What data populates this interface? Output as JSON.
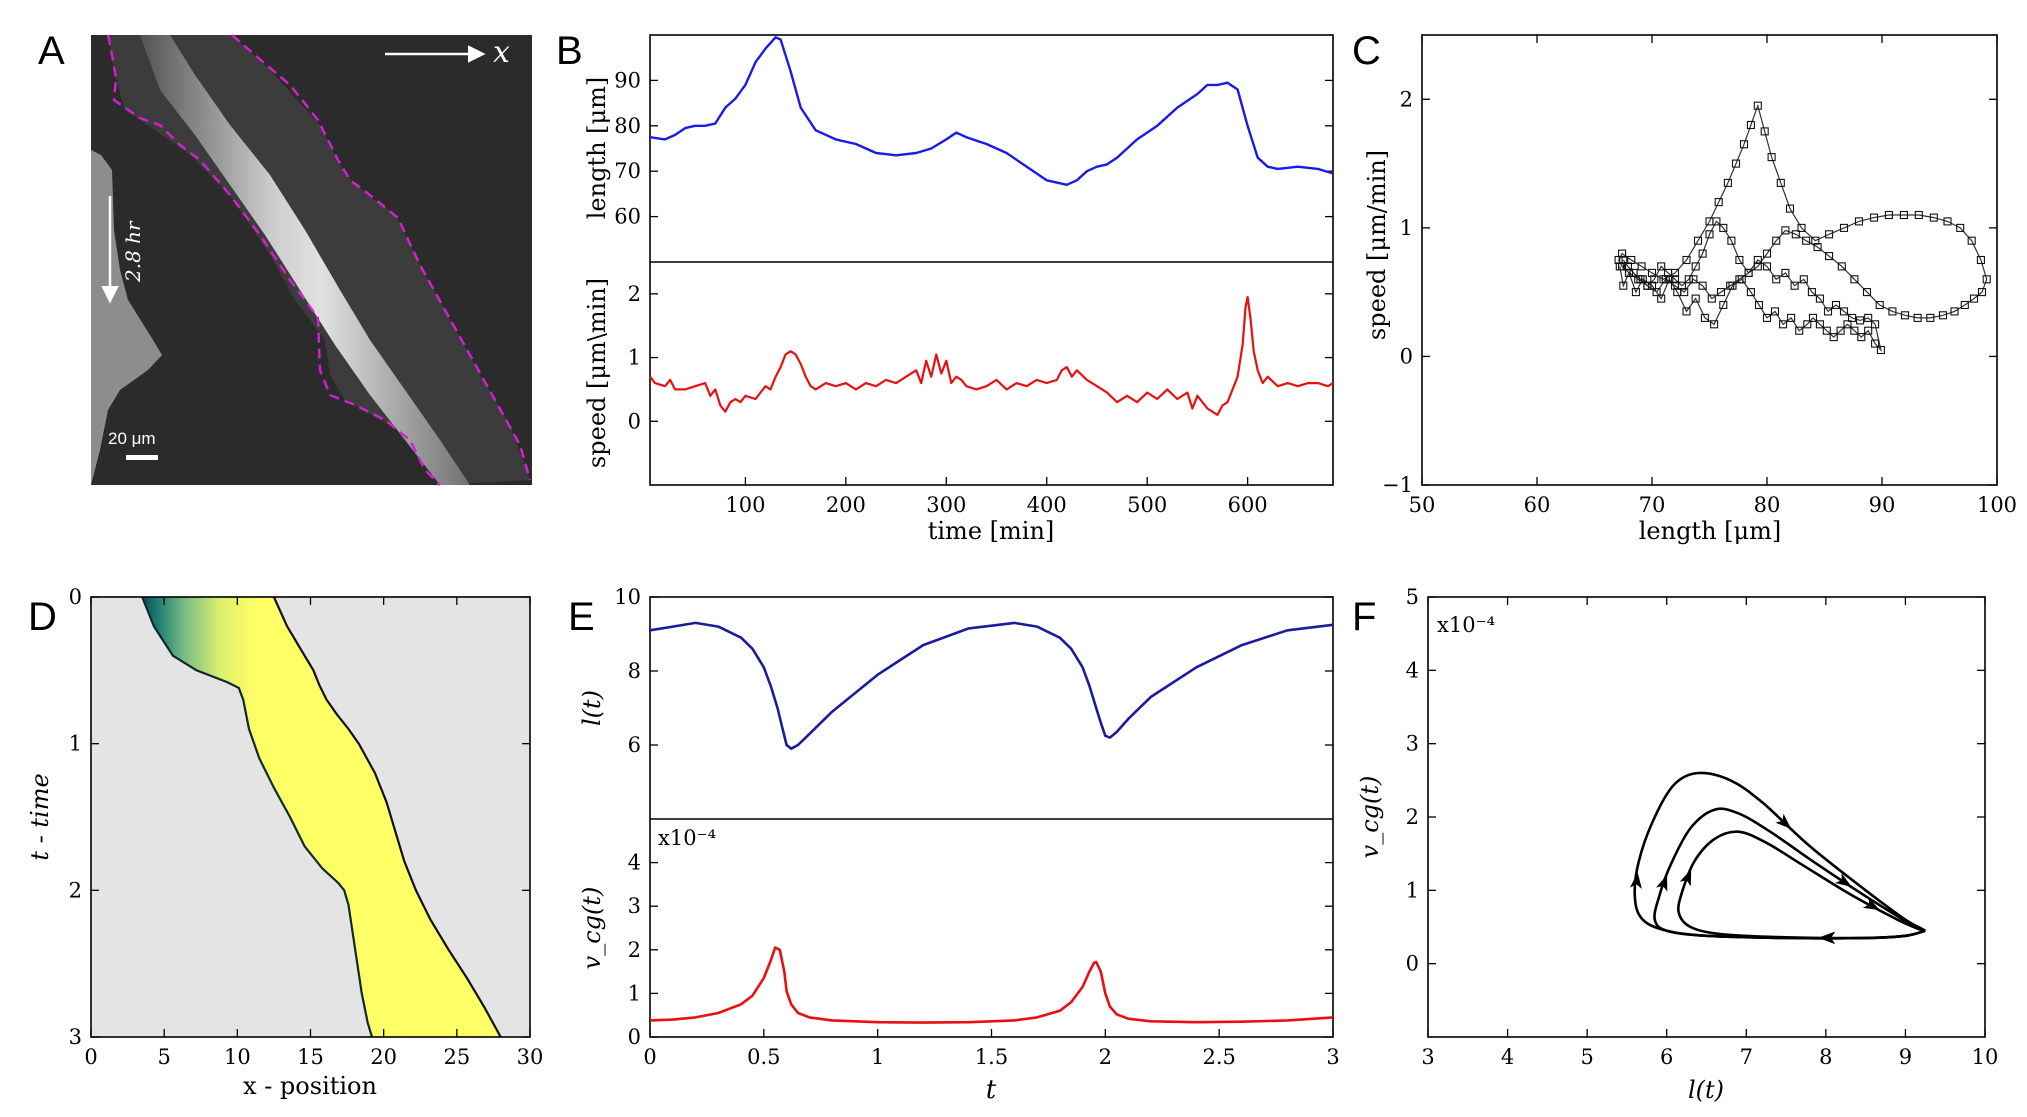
{
  "panel_labels": [
    "A",
    "B",
    "C",
    "D",
    "E",
    "F"
  ],
  "panelA": {
    "arrow_label": "x",
    "time_label": "2.8 hr",
    "scale_label": "20 μm"
  },
  "chart_data": [
    {
      "id": "B-top",
      "type": "line",
      "ylabel": "length [μm]",
      "xlim": [
        5,
        685
      ],
      "ylim": [
        50,
        100
      ],
      "yticks": [
        60,
        70,
        80,
        90
      ],
      "series": [
        {
          "name": "length",
          "color": "#1a1aee",
          "x": [
            5,
            20,
            30,
            40,
            50,
            60,
            70,
            80,
            90,
            100,
            110,
            120,
            130,
            135,
            145,
            155,
            170,
            190,
            210,
            230,
            250,
            270,
            285,
            300,
            310,
            320,
            340,
            360,
            380,
            400,
            410,
            420,
            430,
            440,
            450,
            460,
            470,
            490,
            510,
            530,
            550,
            560,
            570,
            580,
            590,
            600,
            610,
            620,
            630,
            650,
            670,
            685
          ],
          "y": [
            77.5,
            77,
            78,
            79.5,
            80,
            80,
            80.5,
            84,
            86,
            89,
            94,
            97,
            99.5,
            99,
            92,
            84,
            79,
            77,
            76,
            74,
            73.5,
            74,
            75,
            77,
            78.5,
            77.5,
            76,
            74,
            71,
            68,
            67.5,
            67,
            68,
            70,
            71,
            71.5,
            73,
            77,
            80,
            84,
            87,
            89,
            89,
            89.5,
            88,
            80,
            73,
            71,
            70.5,
            71,
            70.5,
            69.5
          ]
        }
      ]
    },
    {
      "id": "B-bottom",
      "type": "line",
      "xlabel": "time [min]",
      "ylabel": "speed [μm\\min]",
      "xlim": [
        5,
        685
      ],
      "ylim": [
        -1,
        2.5
      ],
      "xticks": [
        100,
        200,
        300,
        400,
        500,
        600
      ],
      "yticks": [
        0,
        1,
        2
      ],
      "series": [
        {
          "name": "speed",
          "color": "#e81010",
          "x": [
            5,
            10,
            20,
            25,
            30,
            40,
            50,
            60,
            65,
            70,
            75,
            80,
            85,
            90,
            95,
            100,
            110,
            120,
            125,
            130,
            135,
            140,
            145,
            150,
            155,
            160,
            165,
            170,
            180,
            190,
            200,
            210,
            220,
            230,
            240,
            250,
            260,
            270,
            275,
            280,
            285,
            290,
            295,
            300,
            305,
            310,
            315,
            320,
            330,
            340,
            350,
            360,
            370,
            380,
            390,
            400,
            410,
            415,
            420,
            425,
            430,
            440,
            450,
            460,
            470,
            480,
            490,
            500,
            510,
            520,
            530,
            540,
            545,
            550,
            560,
            570,
            575,
            580,
            585,
            590,
            595,
            598,
            600,
            603,
            606,
            610,
            615,
            620,
            630,
            640,
            650,
            660,
            670,
            680,
            685
          ],
          "y": [
            0.7,
            0.6,
            0.55,
            0.65,
            0.5,
            0.5,
            0.55,
            0.6,
            0.4,
            0.5,
            0.25,
            0.15,
            0.3,
            0.35,
            0.3,
            0.4,
            0.35,
            0.55,
            0.5,
            0.7,
            0.85,
            1.05,
            1.1,
            1.05,
            0.9,
            0.7,
            0.55,
            0.5,
            0.6,
            0.55,
            0.6,
            0.5,
            0.6,
            0.55,
            0.65,
            0.6,
            0.7,
            0.8,
            0.6,
            0.95,
            0.7,
            1.05,
            0.75,
            0.95,
            0.6,
            0.7,
            0.65,
            0.55,
            0.5,
            0.55,
            0.65,
            0.5,
            0.6,
            0.55,
            0.65,
            0.6,
            0.65,
            0.8,
            0.85,
            0.7,
            0.8,
            0.65,
            0.55,
            0.45,
            0.3,
            0.4,
            0.3,
            0.45,
            0.35,
            0.5,
            0.35,
            0.45,
            0.2,
            0.4,
            0.2,
            0.1,
            0.25,
            0.3,
            0.5,
            0.7,
            1.2,
            1.8,
            1.95,
            1.6,
            1.1,
            0.8,
            0.6,
            0.7,
            0.55,
            0.6,
            0.55,
            0.6,
            0.6,
            0.55,
            0.6
          ]
        }
      ]
    },
    {
      "id": "C",
      "type": "scatter",
      "xlabel": "length [μm]",
      "ylabel": "speed [μm/min]",
      "xlim": [
        50,
        100
      ],
      "ylim": [
        -1,
        2.5
      ],
      "xticks": [
        50,
        60,
        70,
        80,
        90,
        100
      ],
      "yticks": [
        -1,
        0,
        1,
        2
      ],
      "series": [
        {
          "name": "trajectory",
          "color": "#000000",
          "marker": "square",
          "x": [
            67.2,
            67.5,
            68,
            68.6,
            69.2,
            70,
            70.8,
            71.5,
            72.2,
            73,
            73.8,
            74.6,
            75.4,
            76.2,
            77,
            77.8,
            78.6,
            79.3,
            80,
            80.7,
            81.4,
            82.1,
            82.8,
            83.5,
            84,
            84.6,
            85.2,
            85.8,
            86.4,
            87,
            87.6,
            88.2,
            88.8,
            89.4,
            89.9,
            89.4,
            88.8,
            88.1,
            87.4,
            86.7,
            86,
            85.3,
            84.6,
            83.9,
            83.2,
            82.4,
            81.6,
            80.8,
            80,
            79.2,
            78.4,
            77.6,
            76.8,
            76,
            75.2,
            74.4,
            73.6,
            72.8,
            72,
            71.2,
            70.4,
            69.6,
            68.8,
            68,
            67.4,
            67.1,
            67.4,
            68.2,
            69.1,
            70,
            71,
            72,
            73,
            74,
            75,
            75.8,
            76.6,
            77.3,
            78,
            78.6,
            79.2,
            79.8,
            80.4,
            81.2,
            82,
            83,
            84.2,
            85.4,
            86.7,
            88,
            89.3,
            90.6,
            91.9,
            93.2,
            94.5,
            95.7,
            96.8,
            97.8,
            98.6,
            99.1,
            98.7,
            98,
            97.2,
            96.3,
            95.3,
            94.2,
            93.1,
            92,
            90.9,
            89.8,
            88.7,
            87.6,
            86.5,
            85.4,
            84.4,
            83.4,
            82.5,
            81.6,
            80.8,
            80,
            79.2,
            78.4,
            77.6,
            76.9,
            76.2,
            75.6,
            75,
            74.4,
            73.8,
            73.2,
            72.6,
            72,
            71.4,
            70.8,
            70.2,
            69.6,
            69,
            68.4,
            67.9,
            67.5
          ],
          "y": [
            0.7,
            0.55,
            0.65,
            0.5,
            0.6,
            0.55,
            0.45,
            0.6,
            0.5,
            0.35,
            0.45,
            0.3,
            0.25,
            0.4,
            0.55,
            0.6,
            0.5,
            0.4,
            0.3,
            0.35,
            0.25,
            0.3,
            0.2,
            0.25,
            0.3,
            0.25,
            0.2,
            0.15,
            0.2,
            0.25,
            0.2,
            0.15,
            0.2,
            0.1,
            0.05,
            0.25,
            0.3,
            0.28,
            0.3,
            0.35,
            0.4,
            0.35,
            0.45,
            0.5,
            0.6,
            0.55,
            0.65,
            0.6,
            0.7,
            0.75,
            0.65,
            0.6,
            0.55,
            0.5,
            0.45,
            0.55,
            0.6,
            0.5,
            0.55,
            0.6,
            0.5,
            0.55,
            0.6,
            0.65,
            0.7,
            0.75,
            0.8,
            0.75,
            0.7,
            0.65,
            0.6,
            0.65,
            0.75,
            0.9,
            1.05,
            1.2,
            1.35,
            1.5,
            1.65,
            1.8,
            1.95,
            1.75,
            1.55,
            1.35,
            1.15,
            1.0,
            0.9,
            0.95,
            1.0,
            1.05,
            1.08,
            1.1,
            1.1,
            1.1,
            1.08,
            1.05,
            1.0,
            0.9,
            0.75,
            0.6,
            0.5,
            0.45,
            0.4,
            0.35,
            0.32,
            0.3,
            0.3,
            0.32,
            0.35,
            0.4,
            0.5,
            0.6,
            0.7,
            0.78,
            0.85,
            0.9,
            0.95,
            0.98,
            0.9,
            0.8,
            0.7,
            0.65,
            0.75,
            0.9,
            1.0,
            1.05,
            0.95,
            0.8,
            0.7,
            0.6,
            0.55,
            0.6,
            0.65,
            0.7,
            0.6,
            0.55,
            0.6,
            0.65,
            0.7,
            0.75
          ]
        }
      ]
    },
    {
      "id": "D",
      "type": "heatmap",
      "xlabel": "x - position",
      "ylabel": "t - time",
      "xlim": [
        0,
        30
      ],
      "ylim": [
        3,
        0
      ],
      "xticks": [
        0,
        5,
        10,
        15,
        20,
        25,
        30
      ],
      "yticks": [
        0,
        1,
        2,
        3
      ],
      "left_edge": {
        "t": [
          0,
          0.2,
          0.4,
          0.5,
          0.58,
          0.62,
          0.7,
          0.9,
          1.1,
          1.3,
          1.5,
          1.7,
          1.85,
          1.95,
          2.0,
          2.1,
          2.3,
          2.5,
          2.7,
          2.9,
          3.0
        ],
        "x": [
          3.5,
          4.3,
          5.6,
          7.2,
          9.3,
          10.1,
          10.4,
          10.8,
          11.5,
          12.5,
          13.6,
          14.6,
          15.8,
          16.9,
          17.3,
          17.6,
          17.9,
          18.2,
          18.5,
          18.9,
          19.2
        ]
      },
      "right_edge": {
        "t": [
          0,
          0.2,
          0.4,
          0.5,
          0.6,
          0.7,
          0.8,
          0.9,
          1.0,
          1.2,
          1.4,
          1.6,
          1.8,
          2.0,
          2.2,
          2.4,
          2.6,
          2.8,
          3.0
        ],
        "x": [
          12.5,
          13.4,
          14.6,
          15.2,
          15.6,
          16.1,
          16.8,
          17.6,
          18.3,
          19.4,
          20.2,
          20.8,
          21.4,
          22.2,
          23.2,
          24.4,
          25.7,
          26.9,
          28.0
        ]
      }
    },
    {
      "id": "E-top",
      "type": "line",
      "ylabel": "l(t)",
      "xlim": [
        0,
        3
      ],
      "ylim": [
        4,
        10
      ],
      "yticks": [
        6,
        8,
        10
      ],
      "series": [
        {
          "name": "l(t)",
          "color": "#1b1b9e",
          "x": [
            0,
            0.1,
            0.2,
            0.3,
            0.4,
            0.45,
            0.5,
            0.53,
            0.56,
            0.58,
            0.6,
            0.62,
            0.65,
            0.7,
            0.8,
            1.0,
            1.2,
            1.4,
            1.6,
            1.7,
            1.8,
            1.85,
            1.9,
            1.93,
            1.96,
            1.98,
            2.0,
            2.02,
            2.05,
            2.1,
            2.2,
            2.4,
            2.6,
            2.8,
            3.0
          ],
          "y": [
            9.1,
            9.2,
            9.3,
            9.2,
            8.9,
            8.6,
            8.1,
            7.6,
            7.0,
            6.5,
            6.0,
            5.9,
            6.0,
            6.3,
            6.9,
            7.9,
            8.7,
            9.15,
            9.3,
            9.2,
            8.9,
            8.6,
            8.1,
            7.6,
            7.0,
            6.6,
            6.25,
            6.2,
            6.35,
            6.7,
            7.3,
            8.1,
            8.7,
            9.1,
            9.25
          ]
        }
      ]
    },
    {
      "id": "E-bottom",
      "type": "line",
      "xlabel": "t",
      "ylabel": "v_cg(t)",
      "multiplier": "x10⁻⁴",
      "xlim": [
        0,
        3
      ],
      "ylim": [
        0,
        5
      ],
      "xticks": [
        0,
        0.5,
        1,
        1.5,
        2,
        2.5,
        3
      ],
      "yticks": [
        0,
        1,
        2,
        3,
        4
      ],
      "series": [
        {
          "name": "v_cg(t)",
          "color": "#e81010",
          "x": [
            0,
            0.1,
            0.2,
            0.3,
            0.4,
            0.45,
            0.5,
            0.53,
            0.55,
            0.57,
            0.59,
            0.6,
            0.62,
            0.65,
            0.7,
            0.8,
            1.0,
            1.2,
            1.4,
            1.6,
            1.7,
            1.8,
            1.85,
            1.9,
            1.93,
            1.95,
            1.96,
            1.98,
            2.0,
            2.02,
            2.05,
            2.1,
            2.2,
            2.4,
            2.6,
            2.8,
            3.0
          ],
          "y": [
            0.38,
            0.4,
            0.45,
            0.55,
            0.75,
            0.95,
            1.35,
            1.75,
            2.05,
            2.0,
            1.5,
            1.05,
            0.75,
            0.55,
            0.45,
            0.38,
            0.34,
            0.33,
            0.34,
            0.38,
            0.45,
            0.6,
            0.8,
            1.15,
            1.5,
            1.7,
            1.72,
            1.5,
            1.0,
            0.7,
            0.52,
            0.42,
            0.36,
            0.34,
            0.35,
            0.38,
            0.45
          ]
        }
      ]
    },
    {
      "id": "F",
      "type": "line",
      "xlabel": "l(t)",
      "ylabel": "v_cg(t)",
      "multiplier": "x10⁻⁴",
      "xlim": [
        3,
        10
      ],
      "ylim": [
        -1,
        5
      ],
      "xticks": [
        3,
        4,
        5,
        6,
        7,
        8,
        9,
        10
      ],
      "yticks": [
        0,
        1,
        2,
        3,
        4,
        5
      ],
      "series": [
        {
          "name": "orbit-1",
          "color": "#000000",
          "x": [
            9.25,
            9.0,
            8.5,
            7.5,
            6.5,
            6.0,
            5.7,
            5.6,
            5.65,
            5.85,
            6.1,
            6.4,
            6.8,
            7.2,
            7.8,
            8.5,
            9.0,
            9.2,
            9.25
          ],
          "y": [
            0.45,
            0.38,
            0.35,
            0.35,
            0.38,
            0.45,
            0.6,
            0.9,
            1.4,
            2.0,
            2.45,
            2.6,
            2.5,
            2.2,
            1.6,
            1.0,
            0.6,
            0.48,
            0.45
          ]
        },
        {
          "name": "orbit-2",
          "color": "#000000",
          "x": [
            9.25,
            9.0,
            8.5,
            7.5,
            6.5,
            6.0,
            5.85,
            5.9,
            6.05,
            6.3,
            6.6,
            6.9,
            7.3,
            7.9,
            8.6,
            9.05,
            9.2,
            9.25
          ],
          "y": [
            0.45,
            0.38,
            0.35,
            0.35,
            0.38,
            0.45,
            0.6,
            0.9,
            1.35,
            1.85,
            2.1,
            2.05,
            1.8,
            1.35,
            0.85,
            0.55,
            0.47,
            0.45
          ]
        },
        {
          "name": "orbit-3",
          "color": "#000000",
          "x": [
            9.25,
            9.0,
            8.5,
            7.5,
            6.7,
            6.3,
            6.15,
            6.2,
            6.35,
            6.6,
            6.9,
            7.25,
            7.7,
            8.3,
            8.9,
            9.15,
            9.25
          ],
          "y": [
            0.45,
            0.38,
            0.35,
            0.36,
            0.4,
            0.5,
            0.7,
            1.0,
            1.4,
            1.7,
            1.8,
            1.65,
            1.35,
            0.95,
            0.6,
            0.48,
            0.45
          ]
        }
      ]
    }
  ]
}
